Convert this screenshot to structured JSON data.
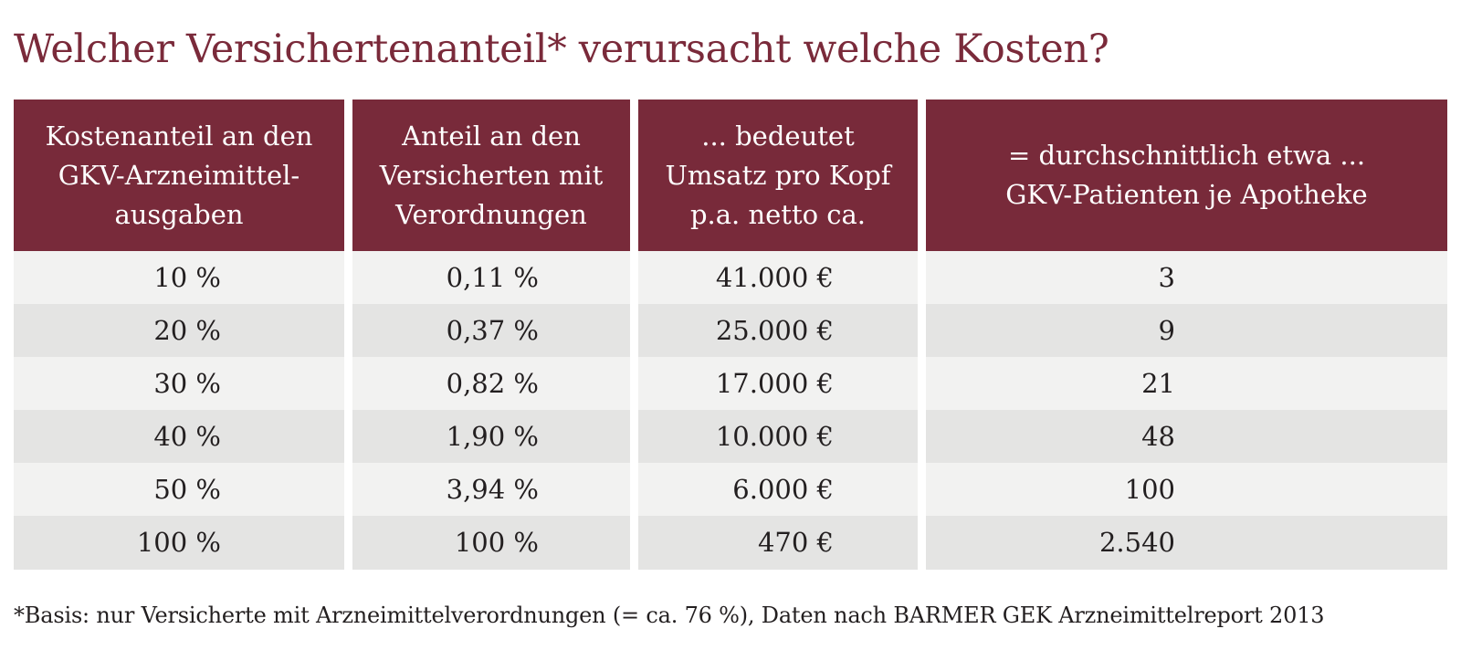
{
  "title": "Welcher Versichertenanteil* verursacht welche Kosten?",
  "chart_data": {
    "type": "table",
    "columns": [
      "Kostenanteil an den\nGKV-Arzneimittel-\nausgaben",
      "Anteil an den\nVersicherten mit\nVerordnungen",
      "... bedeutet\nUmsatz pro Kopf\np.a. netto ca.",
      "= durchschnittlich etwa ...\nGKV-Patienten je Apotheke"
    ],
    "rows": [
      [
        "10 %",
        "0,11 %",
        "41.000 €",
        "3"
      ],
      [
        "20 %",
        "0,37 %",
        "25.000 €",
        "9"
      ],
      [
        "30 %",
        "0,82 %",
        "17.000 €",
        "21"
      ],
      [
        "40 %",
        "1,90 %",
        "10.000 €",
        "48"
      ],
      [
        "50 %",
        "3,94 %",
        "6.000 €",
        "100"
      ],
      [
        "100 %",
        "100 %",
        "470 €",
        "2.540"
      ]
    ],
    "header_color": "#782a3a",
    "row_colors": [
      "#f2f2f1",
      "#e4e4e3"
    ]
  },
  "footnote": "*Basis: nur Versicherte mit Arzneimittelverordnungen (= ca. 76 %), Daten nach BARMER GEK Arzneimittelreport 2013"
}
